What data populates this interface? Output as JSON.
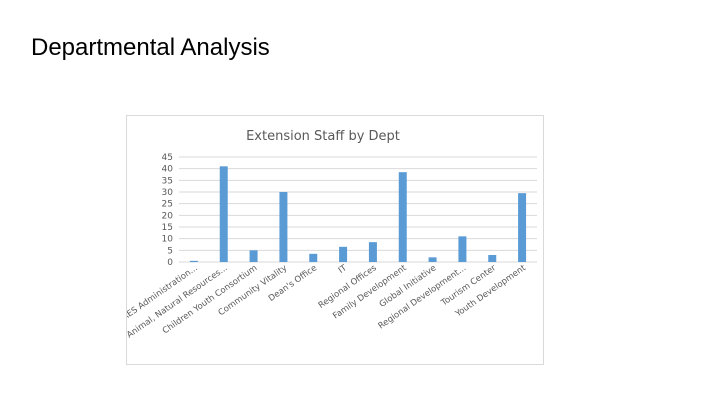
{
  "slide": {
    "title": "Departmental Analysis"
  },
  "colors": {
    "bar": "#5b9bd5",
    "grid": "#d9d9d9",
    "text": "#595959"
  },
  "chart_data": {
    "type": "bar",
    "title": "Extension Staff by Dept",
    "xlabel": "",
    "ylabel": "",
    "ylim": [
      0,
      45
    ],
    "yticks": [
      "45",
      "40",
      "35",
      "30",
      "25",
      "20",
      "15",
      "10",
      "5",
      "0"
    ],
    "grid": true,
    "legend": "none",
    "categories": [
      "AES Administration...",
      "Animal, Natural Resources...",
      "Children Youth Consortium",
      "Community Vitality",
      "Dean's Office",
      "IT",
      "Regional Offices",
      "Family Development",
      "Global Initiative",
      "Regional Development...",
      "Tourism Center",
      "Youth Development"
    ],
    "values": [
      0.5,
      41,
      5,
      30,
      3.5,
      6.5,
      8.5,
      38.5,
      2,
      11,
      3,
      29.5
    ]
  }
}
